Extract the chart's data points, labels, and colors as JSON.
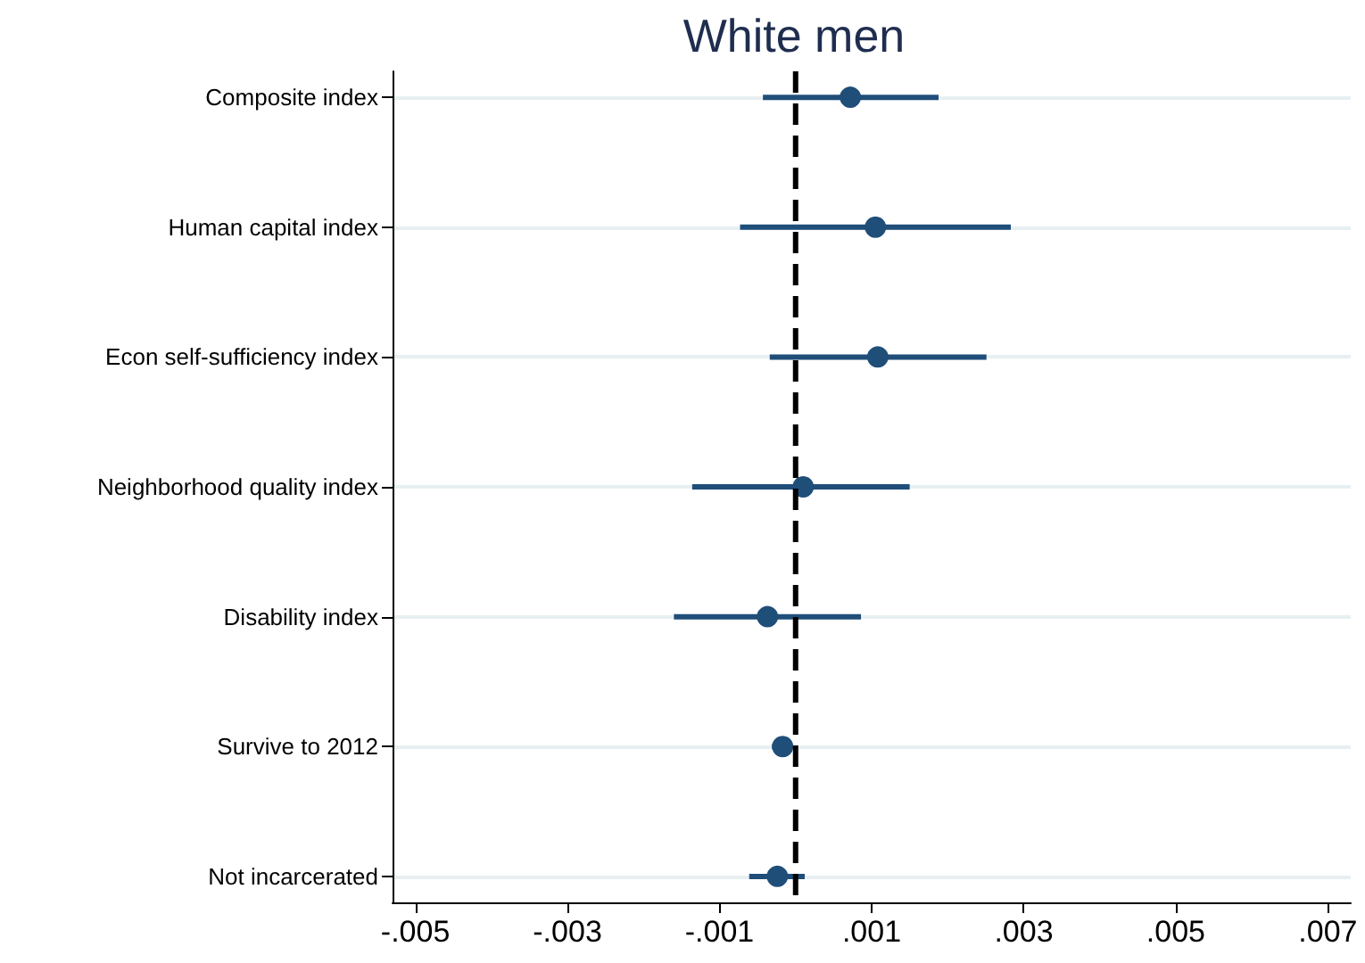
{
  "chart_data": {
    "type": "scatter",
    "title": "White men",
    "orientation": "horizontal",
    "categories": [
      "Composite index",
      "Human capital index",
      "Econ self-sufficiency index",
      "Neighborhood quality index",
      "Disability index",
      "Survive to 2012",
      "Not incarcerated"
    ],
    "series": [
      {
        "color": "#1f4e79",
        "values": [
          0.00072,
          0.00105,
          0.00108,
          0.0001,
          -0.00037,
          -0.00017,
          -0.00024
        ],
        "errors": [
          [
            -0.00043,
            0.00188
          ],
          [
            -0.00073,
            0.00283
          ],
          [
            -0.00034,
            0.00251
          ],
          [
            -0.00136,
            0.0015
          ],
          [
            -0.0016,
            0.00086
          ],
          [
            -0.00031,
            -5e-05
          ],
          [
            -0.00061,
            0.00012
          ]
        ]
      }
    ],
    "xlim": [
      -0.0053,
      0.0073
    ],
    "xticks": [
      {
        "value": -0.005,
        "label": "-.005"
      },
      {
        "value": -0.003,
        "label": "-.003"
      },
      {
        "value": -0.001,
        "label": "-.001"
      },
      {
        "value": 0.001,
        "label": ".001"
      },
      {
        "value": 0.003,
        "label": ".003"
      },
      {
        "value": 0.005,
        "label": ".005"
      },
      {
        "value": 0.007,
        "label": ".007"
      }
    ],
    "grid": "y",
    "marker": "circle",
    "ref_lines": [
      {
        "axis": "x",
        "value": 0,
        "color": "#000000",
        "line_style": "dashed"
      }
    ]
  }
}
